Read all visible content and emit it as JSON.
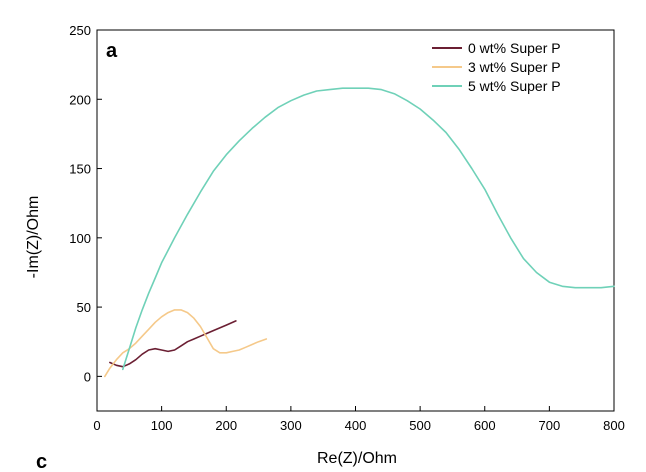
{
  "chart_data": {
    "type": "line",
    "panel_label": "a",
    "bottom_label": "c",
    "xlabel": "Re(Z)/Ohm",
    "ylabel": "-Im(Z)/Ohm",
    "xlim": [
      0,
      800
    ],
    "ylim": [
      -25,
      250
    ],
    "x_ticks": [
      0,
      100,
      200,
      300,
      400,
      500,
      600,
      700,
      800
    ],
    "y_ticks": [
      0,
      50,
      100,
      150,
      200,
      250
    ],
    "grid": false,
    "legend_position": "top-right",
    "series": [
      {
        "name": "0 wt% Super P",
        "color": "#6b1f33",
        "x": [
          20,
          30,
          40,
          50,
          60,
          70,
          80,
          90,
          100,
          110,
          120,
          130,
          140,
          150,
          160,
          170,
          180,
          190,
          200,
          215
        ],
        "y": [
          10,
          8,
          7,
          9,
          12,
          16,
          19,
          20,
          19,
          18,
          19,
          22,
          25,
          27,
          29,
          31,
          33,
          35,
          37,
          40
        ]
      },
      {
        "name": "3 wt% Super P",
        "color": "#f5c98a",
        "x": [
          12,
          20,
          30,
          40,
          50,
          60,
          70,
          80,
          90,
          100,
          110,
          120,
          130,
          140,
          150,
          160,
          170,
          180,
          190,
          200,
          210,
          220,
          230,
          240,
          250,
          262
        ],
        "y": [
          0,
          6,
          12,
          17,
          20,
          24,
          29,
          34,
          39,
          43,
          46,
          48,
          48,
          46,
          42,
          36,
          28,
          20,
          17,
          17,
          18,
          19,
          21,
          23,
          25,
          27
        ]
      },
      {
        "name": "5 wt% Super P",
        "color": "#6fd1b8",
        "x": [
          40,
          50,
          60,
          70,
          80,
          90,
          100,
          120,
          140,
          160,
          180,
          200,
          220,
          240,
          260,
          280,
          300,
          320,
          340,
          360,
          380,
          400,
          420,
          440,
          460,
          480,
          500,
          520,
          540,
          560,
          580,
          600,
          620,
          640,
          660,
          680,
          700,
          720,
          740,
          760,
          780,
          800
        ],
        "y": [
          5,
          20,
          35,
          48,
          60,
          71,
          82,
          100,
          117,
          133,
          148,
          160,
          170,
          179,
          187,
          194,
          199,
          203,
          206,
          207,
          208,
          208,
          208,
          207,
          204,
          199,
          193,
          185,
          176,
          164,
          150,
          135,
          117,
          100,
          85,
          75,
          68,
          65,
          64,
          64,
          64,
          65
        ]
      }
    ]
  }
}
